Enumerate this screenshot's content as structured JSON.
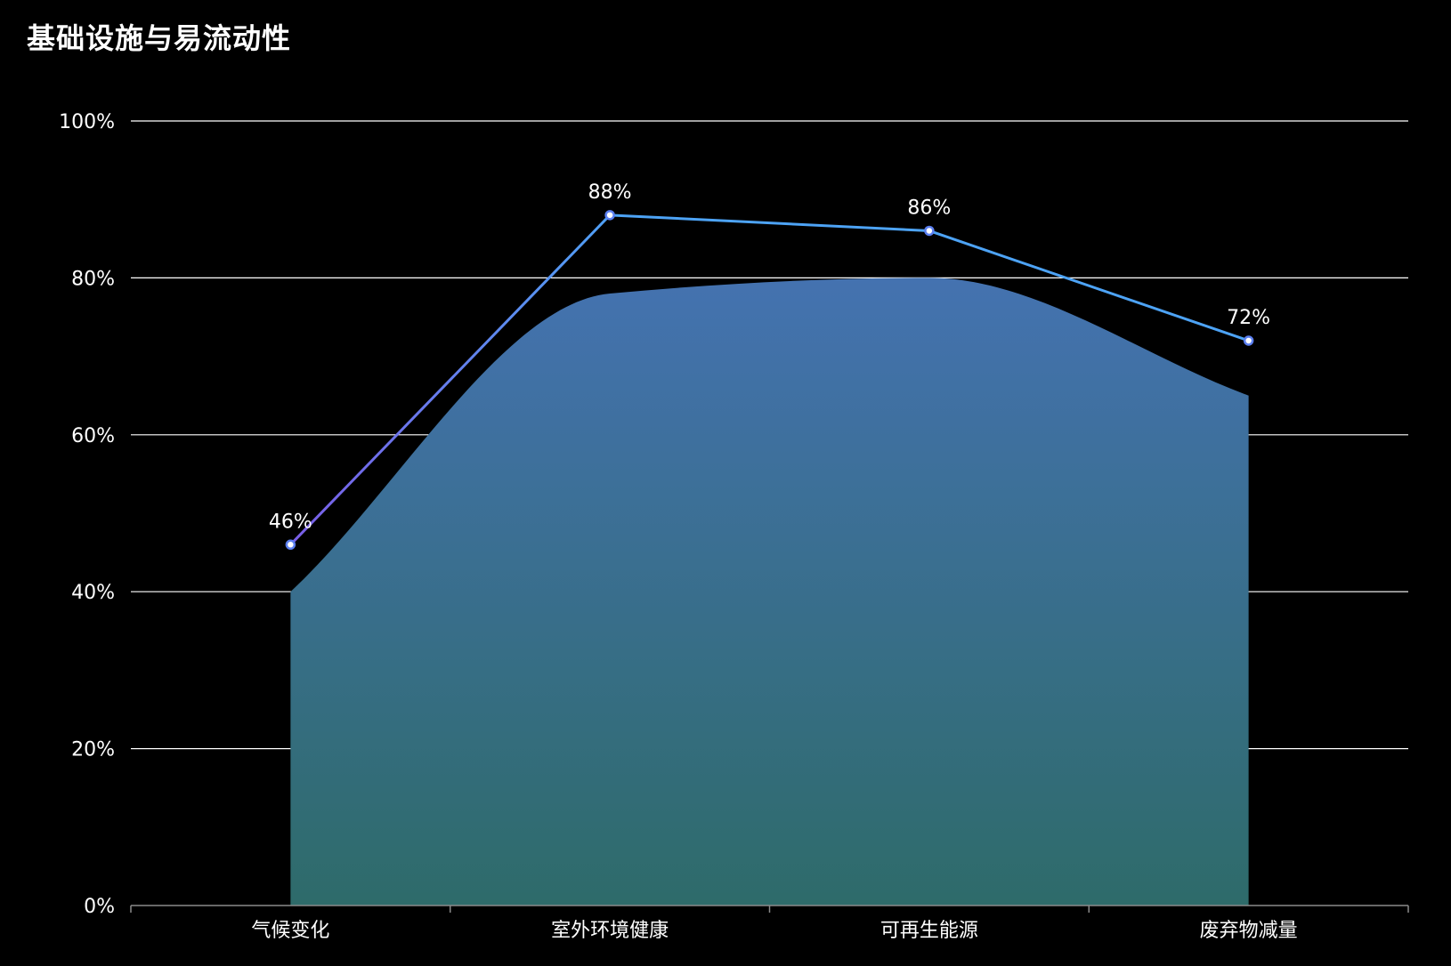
{
  "chart_data": {
    "type": "line",
    "title": "基础设施与易流动性",
    "categories": [
      "气候变化",
      "室外环境健康",
      "可再生能源",
      "废弃物减量"
    ],
    "series": [
      {
        "type": "area",
        "smooth": true,
        "values": [
          40,
          78,
          80,
          65
        ],
        "color_top": "#4472b0",
        "color_bottom": "#2e6b6a"
      },
      {
        "type": "line",
        "values": [
          46,
          88,
          86,
          72
        ],
        "labels": [
          "46%",
          "88%",
          "86%",
          "72%"
        ],
        "color": "#4da3f5",
        "color_start": "#7b5ce6"
      }
    ],
    "ylim": [
      0,
      100
    ],
    "yticks": [
      "0%",
      "20%",
      "40%",
      "60%",
      "80%",
      "100%"
    ],
    "grid": true,
    "legend": "none"
  }
}
